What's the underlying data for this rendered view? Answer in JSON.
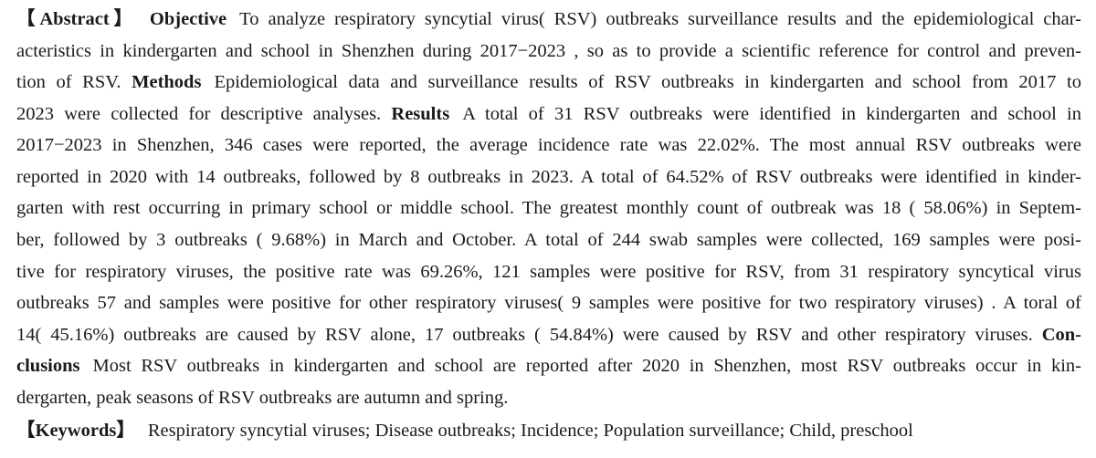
{
  "abstract": {
    "lines": [
      {
        "segments": [
          {
            "text": "【Abstract】",
            "bold": true
          },
          {
            "gap": true
          },
          {
            "text": "Objective",
            "bold": true
          },
          {
            "gap": true
          },
          {
            "text": "To analyze respiratory syncytial virus( RSV) outbreaks surveillance results and the epidemiological char-"
          }
        ]
      },
      {
        "segments": [
          {
            "text": "acteristics in kindergarten and school in Shenzhen during 2017−2023 , so as to provide a scientific reference for control and preven-"
          }
        ]
      },
      {
        "segments": [
          {
            "text": "tion of RSV. "
          },
          {
            "text": "Methods",
            "bold": true
          },
          {
            "gap": true
          },
          {
            "text": "Epidemiological data and surveillance results of RSV outbreaks in kindergarten and school from 2017 to"
          }
        ]
      },
      {
        "segments": [
          {
            "text": "2023 were collected for descriptive analyses. "
          },
          {
            "text": "Results",
            "bold": true
          },
          {
            "gap": true
          },
          {
            "text": "A total of 31 RSV outbreaks were identified in kindergarten and school in"
          }
        ]
      },
      {
        "segments": [
          {
            "text": "2017−2023 in Shenzhen, 346 cases were reported, the average incidence rate was 22.02%. The most annual RSV outbreaks were"
          }
        ]
      },
      {
        "segments": [
          {
            "text": "reported in 2020 with 14 outbreaks, followed by 8 outbreaks in 2023. A total of 64.52% of RSV outbreaks were identified in kinder-"
          }
        ]
      },
      {
        "segments": [
          {
            "text": "garten with rest occurring in primary school or middle school. The greatest monthly count of outbreak was 18 ( 58.06%) in Septem-"
          }
        ]
      },
      {
        "segments": [
          {
            "text": "ber, followed by 3 outbreaks ( 9.68%) in March and October. A total of 244 swab samples were collected, 169 samples were posi-"
          }
        ]
      },
      {
        "segments": [
          {
            "text": "tive for respiratory viruses, the positive rate was 69.26%, 121 samples were positive for RSV, from 31 respiratory syncytical virus"
          }
        ]
      },
      {
        "segments": [
          {
            "text": "outbreaks 57 and samples were positive for other respiratory viruses( 9 samples were positive for two respiratory viruses) . A toral of"
          }
        ]
      },
      {
        "segments": [
          {
            "text": "14( 45.16%) outbreaks are caused by RSV alone, 17 outbreaks ( 54.84%) were caused by RSV and other respiratory viruses. "
          },
          {
            "text": "Con-",
            "bold": true
          }
        ]
      },
      {
        "segments": [
          {
            "text": "clusions",
            "bold": true
          },
          {
            "gap": true
          },
          {
            "text": "Most RSV outbreaks in kindergarten and school are reported after 2020 in Shenzhen, most RSV outbreaks occur in kin-"
          }
        ]
      },
      {
        "segments": [
          {
            "text": "dergarten, peak seasons of RSV outbreaks are autumn and spring."
          }
        ]
      }
    ]
  },
  "keywords": {
    "label": "【Keywords】",
    "text": "Respiratory syncytial viruses; Disease outbreaks; Incidence; Population surveillance; Child, preschool"
  }
}
